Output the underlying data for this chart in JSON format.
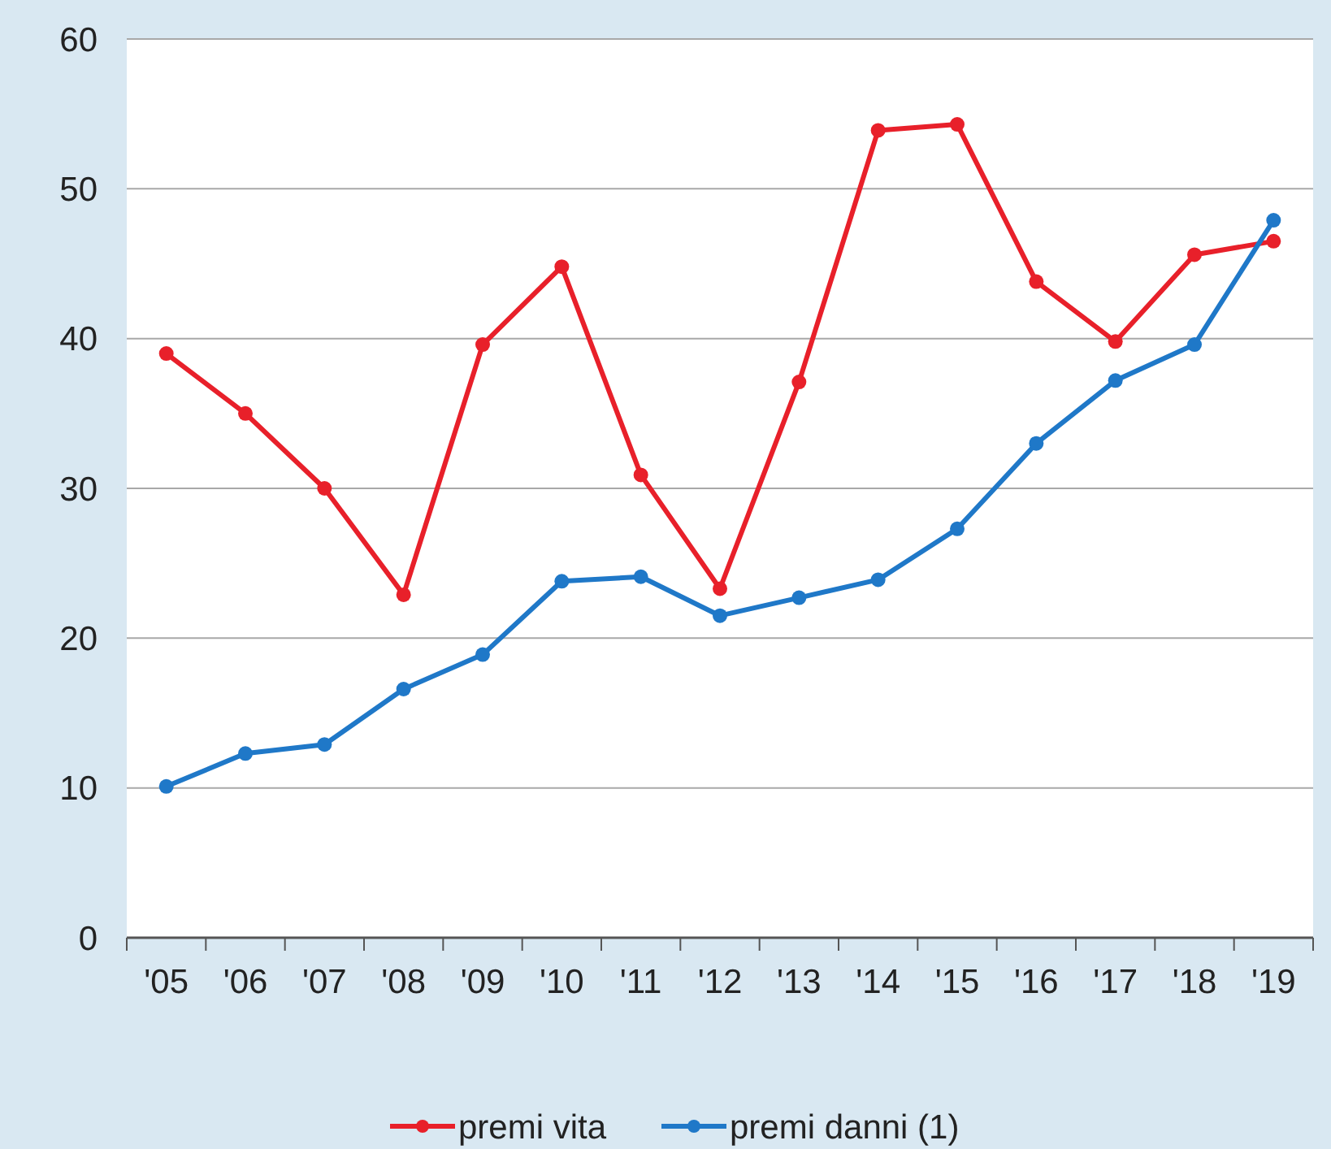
{
  "chart_data": {
    "type": "line",
    "categories": [
      "'05",
      "'06",
      "'07",
      "'08",
      "'09",
      "'10",
      "'11",
      "'12",
      "'13",
      "'14",
      "'15",
      "'16",
      "'17",
      "'18",
      "'19"
    ],
    "series": [
      {
        "name": "premi vita",
        "color": "#e8202a",
        "values": [
          39,
          35,
          30,
          22.9,
          39.6,
          44.8,
          30.9,
          23.3,
          37.1,
          53.9,
          54.3,
          43.8,
          39.8,
          45.6,
          46.5
        ]
      },
      {
        "name": "premi danni (1)",
        "color": "#1f78c8",
        "values": [
          10.1,
          12.3,
          12.9,
          16.6,
          18.9,
          23.8,
          24.1,
          21.5,
          22.7,
          23.9,
          27.3,
          33,
          37.2,
          39.6,
          47.9
        ]
      }
    ],
    "ylim": [
      0,
      60
    ],
    "yticks": [
      0,
      10,
      20,
      30,
      40,
      50,
      60
    ],
    "grid": "y",
    "legend": "bottom",
    "marker": "circle",
    "line_style": "solid"
  }
}
